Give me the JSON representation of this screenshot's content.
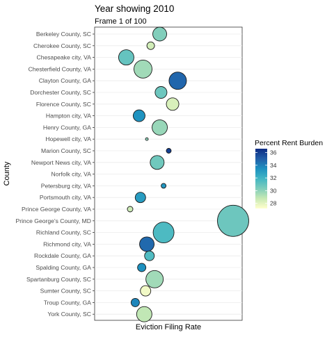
{
  "chart_data": {
    "type": "scatter",
    "title": "Year showing 2010",
    "subtitle": "Frame 1 of 100",
    "xlabel": "Eviction Filing Rate",
    "ylabel": "County",
    "x_tick_labels_shown": false,
    "grid": true,
    "legend": {
      "title": "Percent Rent Burden",
      "placement": "right",
      "range": [
        27.2,
        36.6
      ],
      "ticks": [
        28,
        30,
        32,
        34,
        36
      ],
      "colors": [
        "#ffffcc",
        "#c7e9b4",
        "#7fcdbb",
        "#41b6c4",
        "#1d91c0",
        "#225ea8",
        "#0c2c84"
      ]
    },
    "categories": [
      "Berkeley County, SC",
      "Cherokee County, SC",
      "Chesapeake city, VA",
      "Chesterfield County, VA",
      "Clayton County, GA",
      "Dorchester County, SC",
      "Florence County, SC",
      "Hampton city, VA",
      "Henry County, GA",
      "Hopewell city, VA",
      "Marion County, SC",
      "Newport News city, VA",
      "Norfolk city, VA",
      "Petersburg city, VA",
      "Portsmouth city, VA",
      "Prince George County, VA",
      "Prince George's County, MD",
      "Richland County, SC",
      "Richmond city, VA",
      "Rockdale County, GA",
      "Spalding County, GA",
      "Spartanburg County, SC",
      "Sumter County, SC",
      "Troup County, GA",
      "York County, SC"
    ],
    "points": [
      {
        "county": "Berkeley County, SC",
        "x": 0.43,
        "size": 10,
        "rent_burden": 30.3
      },
      {
        "county": "Cherokee County, SC",
        "x": 0.36,
        "size": 5.5,
        "rent_burden": 28.5
      },
      {
        "county": "Chesapeake city, VA",
        "x": 0.17,
        "size": 11,
        "rent_burden": 31.0
      },
      {
        "county": "Chesterfield County, VA",
        "x": 0.3,
        "size": 13,
        "rent_burden": 29.6
      },
      {
        "county": "Clayton County, GA",
        "x": 0.57,
        "size": 12.5,
        "rent_burden": 34.8
      },
      {
        "county": "Dorchester County, SC",
        "x": 0.44,
        "size": 8.5,
        "rent_burden": 30.8
      },
      {
        "county": "Florence County, SC",
        "x": 0.53,
        "size": 9,
        "rent_burden": 28.3
      },
      {
        "county": "Hampton city, VA",
        "x": 0.27,
        "size": 8.5,
        "rent_burden": 33.4
      },
      {
        "county": "Henry County, GA",
        "x": 0.43,
        "size": 11,
        "rent_burden": 29.8
      },
      {
        "county": "Hopewell city, VA",
        "x": 0.33,
        "size": 2,
        "rent_burden": 30.0
      },
      {
        "county": "Marion County, SC",
        "x": 0.5,
        "size": 3.5,
        "rent_burden": 36.0
      },
      {
        "county": "Newport News city, VA",
        "x": 0.41,
        "size": 10,
        "rent_burden": 30.7
      },
      {
        "county": "Norfolk city, VA",
        "x": null,
        "size": null,
        "rent_burden": null
      },
      {
        "county": "Petersburg city, VA",
        "x": 0.46,
        "size": 3.5,
        "rent_burden": 33.2
      },
      {
        "county": "Portsmouth city, VA",
        "x": 0.28,
        "size": 7.5,
        "rent_burden": 33.0
      },
      {
        "county": "Prince George County, VA",
        "x": 0.2,
        "size": 4,
        "rent_burden": 28.6
      },
      {
        "county": "Prince George's County, MD",
        "x": 1.0,
        "size": 22.5,
        "rent_burden": 30.8
      },
      {
        "county": "Richland County, SC",
        "x": 0.46,
        "size": 15,
        "rent_burden": 31.6
      },
      {
        "county": "Richmond city, VA",
        "x": 0.33,
        "size": 10.5,
        "rent_burden": 34.7
      },
      {
        "county": "Rockdale County, GA",
        "x": 0.35,
        "size": 7,
        "rent_burden": 31.5
      },
      {
        "county": "Spalding County, GA",
        "x": 0.29,
        "size": 6,
        "rent_burden": 33.5
      },
      {
        "county": "Spartanburg County, SC",
        "x": 0.39,
        "size": 12.5,
        "rent_burden": 29.6
      },
      {
        "county": "Sumter County, SC",
        "x": 0.32,
        "size": 7.5,
        "rent_burden": 27.6
      },
      {
        "county": "Troup County, GA",
        "x": 0.24,
        "size": 6,
        "rent_burden": 33.8
      },
      {
        "county": "York County, SC",
        "x": 0.31,
        "size": 11,
        "rent_burden": 28.9
      }
    ]
  }
}
